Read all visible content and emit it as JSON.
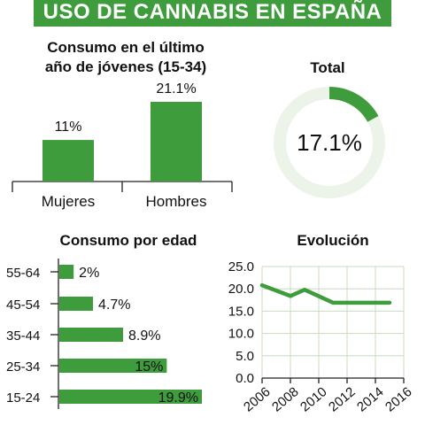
{
  "banner": {
    "title": "USO DE CANNABIS EN ESPAÑA"
  },
  "colors": {
    "accent": "#3e9c3c",
    "ring_track": "#ecf3e8",
    "grid": "#c7dcc0"
  },
  "chart_data": [
    {
      "id": "gender",
      "type": "bar",
      "title": "Consumo en el último año de jóvenes (15-34)",
      "title_lines": [
        "Consumo en el último",
        "año de jóvenes (15-34)"
      ],
      "categories": [
        "Mujeres",
        "Hombres"
      ],
      "values": [
        11,
        21.1
      ],
      "data_labels": [
        "11%",
        "21.1%"
      ],
      "ylim": [
        0,
        23
      ]
    },
    {
      "id": "total",
      "type": "pie",
      "title": "Total",
      "values": [
        17.1,
        82.9
      ],
      "center_label": "17.1%"
    },
    {
      "id": "age",
      "type": "bar",
      "orientation": "horizontal",
      "title": "Consumo por edad",
      "categories": [
        "55-64",
        "45-54",
        "35-44",
        "25-34",
        "15-24"
      ],
      "values": [
        2,
        4.7,
        8.9,
        15,
        19.9
      ],
      "data_labels": [
        "2%",
        "4.7%",
        "8.9%",
        "15%",
        "19.9%"
      ],
      "xlim": [
        0,
        20
      ]
    },
    {
      "id": "trend",
      "type": "line",
      "title": "Evolución",
      "x": [
        2006,
        2008,
        2009,
        2011,
        2013,
        2015
      ],
      "y": [
        20.8,
        18.4,
        19.8,
        16.9,
        16.9,
        16.9
      ],
      "xticks": [
        "2006",
        "2008",
        "2010",
        "2012",
        "2014",
        "2016"
      ],
      "yticks": [
        "25.0",
        "20.0",
        "15.0",
        "10.0",
        "5.0",
        "0.0"
      ],
      "xlim": [
        2006,
        2016
      ],
      "ylim": [
        0,
        25
      ],
      "grid": true
    }
  ]
}
